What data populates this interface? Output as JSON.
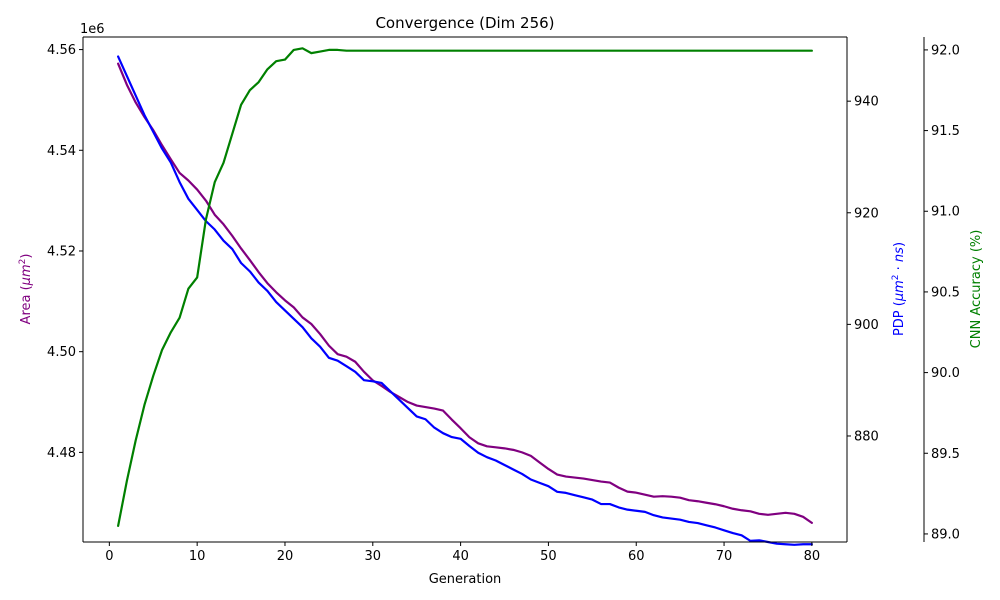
{
  "chart_data": {
    "type": "line",
    "title": "Convergence (Dim 256)",
    "xlabel": "Generation",
    "xlim": [
      -3,
      84
    ],
    "xticks": [
      0,
      10,
      20,
      30,
      40,
      50,
      60,
      70,
      80
    ],
    "grid": false,
    "legend": "none",
    "axes": {
      "area": {
        "label": "Area (μm²)",
        "color": "#800080",
        "position": "left",
        "scale_label": "1e6",
        "ylim": [
          4.4622,
          4.5625
        ],
        "ticks": [
          4.48,
          4.5,
          4.52,
          4.54,
          4.56
        ],
        "tick_labels": [
          "4.48",
          "4.50",
          "4.52",
          "4.54",
          "4.56"
        ]
      },
      "pdp": {
        "label": "PDP (μm²·ns)",
        "color": "#0000ff",
        "position": "right",
        "ylim": [
          861.0,
          951.5
        ],
        "ticks": [
          880,
          900,
          920,
          940
        ],
        "tick_labels": [
          "880",
          "900",
          "920",
          "940"
        ]
      },
      "acc": {
        "label": "CNN Accuracy (%)",
        "color": "#008000",
        "position": "right-offset",
        "ylim": [
          88.95,
          92.08
        ],
        "ticks": [
          89.0,
          89.5,
          90.0,
          90.5,
          91.0,
          91.5,
          92.0
        ],
        "tick_labels": [
          "89.0",
          "89.5",
          "90.0",
          "90.5",
          "91.0",
          "91.5",
          "92.0"
        ]
      }
    },
    "x": [
      1,
      2,
      3,
      4,
      5,
      6,
      7,
      8,
      9,
      10,
      11,
      12,
      13,
      14,
      15,
      16,
      17,
      18,
      19,
      20,
      21,
      22,
      23,
      24,
      25,
      26,
      27,
      28,
      29,
      30,
      31,
      32,
      33,
      34,
      35,
      36,
      37,
      38,
      39,
      40,
      41,
      42,
      43,
      44,
      45,
      46,
      47,
      48,
      49,
      50,
      51,
      52,
      53,
      54,
      55,
      56,
      57,
      58,
      59,
      60,
      61,
      62,
      63,
      64,
      65,
      66,
      67,
      68,
      69,
      70,
      71,
      72,
      73,
      74,
      75,
      76,
      77,
      78,
      79,
      80
    ],
    "series": [
      {
        "axis": "area",
        "color": "#800080",
        "values": [
          4.5572,
          4.553,
          4.5495,
          4.5466,
          4.544,
          4.541,
          4.5382,
          4.5355,
          4.534,
          4.5322,
          4.53,
          4.5272,
          4.5253,
          4.523,
          4.5205,
          4.5182,
          4.5158,
          4.5136,
          4.5118,
          4.5102,
          4.5088,
          4.5068,
          4.5055,
          4.5035,
          4.5012,
          4.4995,
          4.499,
          4.498,
          4.496,
          4.4943,
          4.4932,
          4.492,
          4.491,
          4.49,
          4.4893,
          4.489,
          4.4887,
          4.4883,
          4.4865,
          4.4848,
          4.483,
          4.4818,
          4.4812,
          4.481,
          4.4808,
          4.4805,
          4.48,
          4.4793,
          4.478,
          4.4767,
          4.4756,
          4.4752,
          4.475,
          4.4748,
          4.4745,
          4.4742,
          4.474,
          4.473,
          4.4722,
          4.472,
          4.4716,
          4.4712,
          4.4713,
          4.4712,
          4.471,
          4.4705,
          4.4703,
          4.47,
          4.4697,
          4.4693,
          4.4688,
          4.4685,
          4.4683,
          4.4678,
          4.4676,
          4.4678,
          4.468,
          4.4678,
          4.4672,
          4.466
        ]
      },
      {
        "axis": "pdp",
        "color": "#0000ff",
        "values": [
          948.0,
          944.5,
          941.0,
          937.5,
          934.5,
          931.5,
          929.0,
          925.5,
          922.5,
          920.5,
          918.5,
          917.0,
          915.0,
          913.5,
          911.0,
          909.5,
          907.5,
          906.0,
          904.0,
          902.5,
          901.0,
          899.5,
          897.5,
          896.0,
          894.0,
          893.5,
          892.5,
          891.5,
          890.0,
          889.8,
          889.5,
          888.0,
          886.5,
          885.0,
          883.5,
          883.0,
          881.5,
          880.5,
          879.8,
          879.5,
          878.2,
          877.0,
          876.2,
          875.6,
          874.8,
          874.0,
          873.2,
          872.2,
          871.6,
          871.0,
          870.0,
          869.8,
          869.4,
          869.0,
          868.6,
          867.8,
          867.8,
          867.2,
          866.8,
          866.6,
          866.4,
          865.8,
          865.4,
          865.2,
          865.0,
          864.6,
          864.4,
          864.0,
          863.6,
          863.1,
          862.6,
          862.2,
          861.2,
          861.3,
          861.0,
          860.7,
          860.6,
          860.5,
          860.6,
          860.6
        ]
      },
      {
        "axis": "acc",
        "color": "#008000",
        "values": [
          89.05,
          89.33,
          89.58,
          89.8,
          89.98,
          90.14,
          90.25,
          90.34,
          90.52,
          90.59,
          90.95,
          91.18,
          91.3,
          91.48,
          91.66,
          91.75,
          91.8,
          91.88,
          91.93,
          91.94,
          92.0,
          92.01,
          91.98,
          91.99,
          92.0,
          92.0,
          91.995,
          91.995,
          91.995,
          91.995,
          91.995,
          91.995,
          91.995,
          91.995,
          91.995,
          91.995,
          91.995,
          91.995,
          91.995,
          91.995,
          91.995,
          91.995,
          91.995,
          91.995,
          91.995,
          91.995,
          91.995,
          91.995,
          91.995,
          91.995,
          91.995,
          91.995,
          91.995,
          91.995,
          91.995,
          91.995,
          91.995,
          91.995,
          91.995,
          91.995,
          91.995,
          91.995,
          91.995,
          91.995,
          91.995,
          91.995,
          91.995,
          91.995,
          91.995,
          91.995,
          91.995,
          91.995,
          91.995,
          91.995,
          91.995,
          91.995,
          91.995,
          91.995,
          91.995,
          91.995
        ]
      }
    ]
  }
}
